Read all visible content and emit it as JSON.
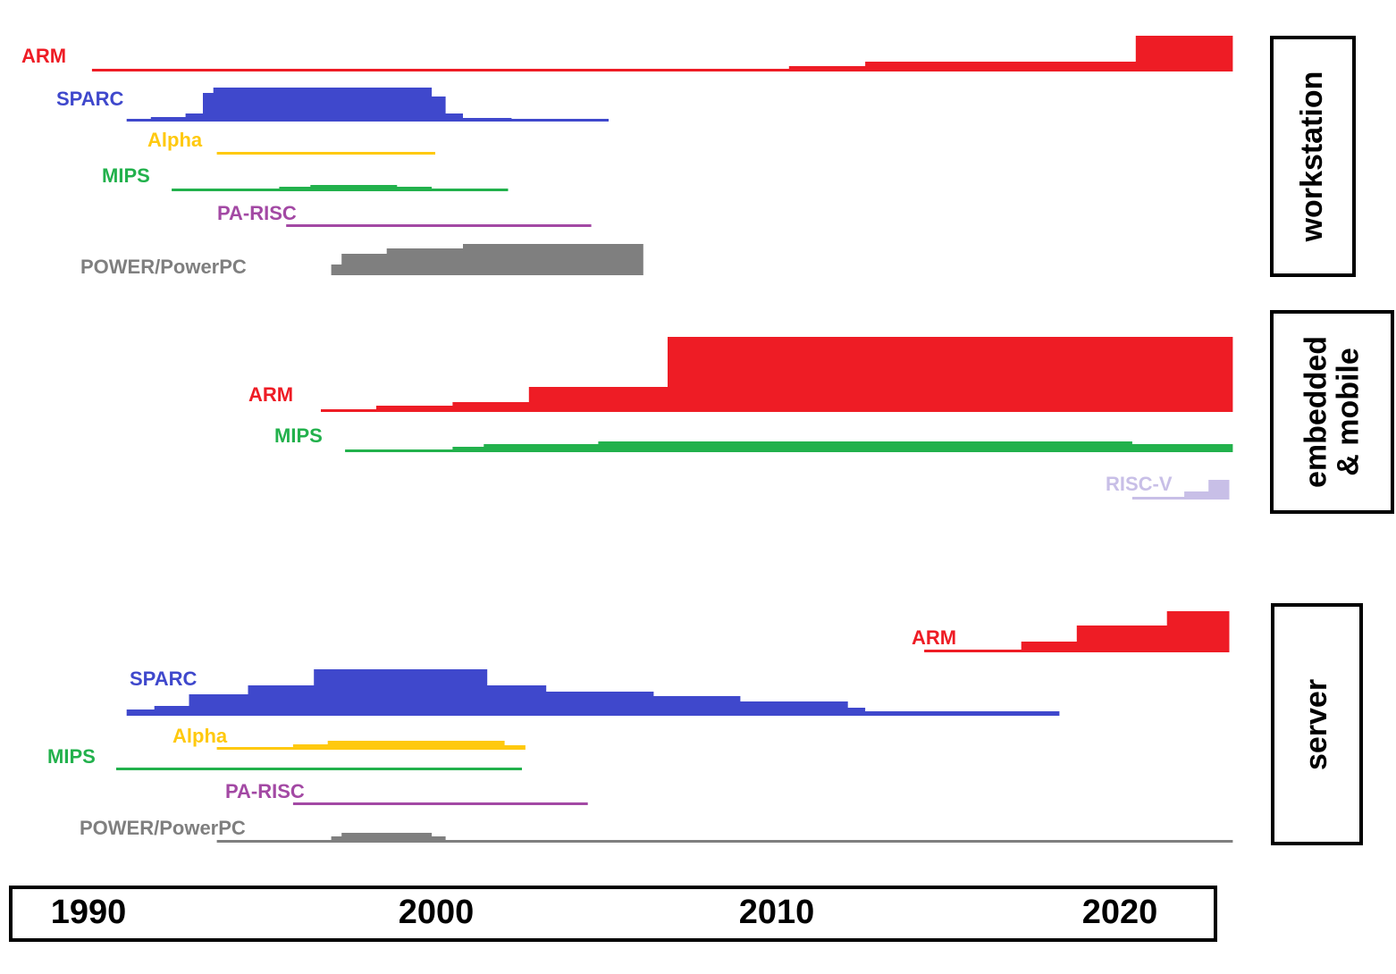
{
  "chart_data": {
    "type": "area",
    "x_axis": {
      "ticks": [
        1990,
        2000,
        2010,
        2020
      ]
    },
    "panels": [
      {
        "title": "workstation",
        "series": [
          {
            "name": "ARM",
            "color": "#ee1c25",
            "steps": [
              [
                1990.1,
                0.08
              ],
              [
                2010.2,
                0.3
              ],
              [
                2012.4,
                0.55
              ],
              [
                2020.2,
                2.0
              ]
            ],
            "end": 2023.0
          },
          {
            "name": "SPARC",
            "color": "#3f48cc",
            "steps": [
              [
                1991.1,
                0.1
              ],
              [
                1991.8,
                0.25
              ],
              [
                1992.8,
                0.45
              ],
              [
                1993.3,
                1.6
              ],
              [
                1993.6,
                1.9
              ],
              [
                1999.9,
                1.4
              ],
              [
                2000.3,
                0.45
              ],
              [
                2000.8,
                0.2
              ],
              [
                2002.2,
                0.08
              ]
            ],
            "end": 2005.0
          },
          {
            "name": "Alpha",
            "color": "#ffc90e",
            "steps": [
              [
                1993.7,
                0.15
              ]
            ],
            "end": 2000.0
          },
          {
            "name": "MIPS",
            "color": "#22b14c",
            "steps": [
              [
                1992.4,
                0.12
              ],
              [
                1995.5,
                0.25
              ],
              [
                1996.4,
                0.35
              ],
              [
                1998.9,
                0.25
              ],
              [
                1999.9,
                0.12
              ]
            ],
            "end": 2002.1
          },
          {
            "name": "PA-RISC",
            "color": "#a349a4",
            "steps": [
              [
                1995.7,
                0.15
              ]
            ],
            "end": 2004.5
          },
          {
            "name": "POWER/PowerPC",
            "color": "#7f7f7f",
            "steps": [
              [
                1997.0,
                0.6
              ],
              [
                1997.3,
                1.2
              ],
              [
                1998.6,
                1.5
              ],
              [
                2000.8,
                1.75
              ]
            ],
            "end": 2006.0
          }
        ]
      },
      {
        "title": "embedded & mobile",
        "series": [
          {
            "name": "ARM",
            "color": "#ee1c25",
            "steps": [
              [
                1996.7,
                0.12
              ],
              [
                1998.3,
                0.35
              ],
              [
                2000.5,
                0.55
              ],
              [
                2002.7,
                1.4
              ],
              [
                2006.7,
                4.2
              ]
            ],
            "end": 2023.0
          },
          {
            "name": "MIPS",
            "color": "#22b14c",
            "steps": [
              [
                1997.4,
                0.15
              ],
              [
                2000.5,
                0.3
              ],
              [
                2001.4,
                0.45
              ],
              [
                2004.7,
                0.6
              ],
              [
                2020.1,
                0.45
              ]
            ],
            "end": 2023.0
          },
          {
            "name": "RISC-V",
            "color": "#c8bfe7",
            "steps": [
              [
                2020.1,
                0.12
              ],
              [
                2021.6,
                0.45
              ],
              [
                2022.3,
                1.1
              ]
            ],
            "end": 2022.9
          }
        ]
      },
      {
        "title": "server",
        "series": [
          {
            "name": "ARM",
            "color": "#ee1c25",
            "steps": [
              [
                2014.1,
                0.15
              ],
              [
                2016.9,
                0.6
              ],
              [
                2018.5,
                1.5
              ],
              [
                2021.1,
                2.3
              ]
            ],
            "end": 2022.9
          },
          {
            "name": "SPARC",
            "color": "#3f48cc",
            "steps": [
              [
                1991.1,
                0.35
              ],
              [
                1991.9,
                0.55
              ],
              [
                1992.9,
                1.2
              ],
              [
                1994.6,
                1.7
              ],
              [
                1996.5,
                2.6
              ],
              [
                2001.5,
                1.7
              ],
              [
                2003.2,
                1.35
              ],
              [
                2006.3,
                1.1
              ],
              [
                2008.8,
                0.8
              ],
              [
                2011.9,
                0.45
              ],
              [
                2012.4,
                0.25
              ]
            ],
            "end": 2018.0
          },
          {
            "name": "Alpha",
            "color": "#ffc90e",
            "steps": [
              [
                1993.7,
                0.15
              ],
              [
                1995.9,
                0.3
              ],
              [
                1996.9,
                0.5
              ],
              [
                2002.0,
                0.25
              ]
            ],
            "end": 2002.6
          },
          {
            "name": "MIPS",
            "color": "#22b14c",
            "steps": [
              [
                1990.8,
                0.15
              ]
            ],
            "end": 2002.5
          },
          {
            "name": "PA-RISC",
            "color": "#a349a4",
            "steps": [
              [
                1995.9,
                0.15
              ]
            ],
            "end": 2004.4
          },
          {
            "name": "POWER/PowerPC",
            "color": "#7f7f7f",
            "steps": [
              [
                1993.7,
                0.15
              ],
              [
                1997.0,
                0.35
              ],
              [
                1997.3,
                0.55
              ],
              [
                1999.9,
                0.35
              ],
              [
                2000.3,
                0.15
              ]
            ],
            "end": 2023.0
          }
        ]
      }
    ]
  }
}
